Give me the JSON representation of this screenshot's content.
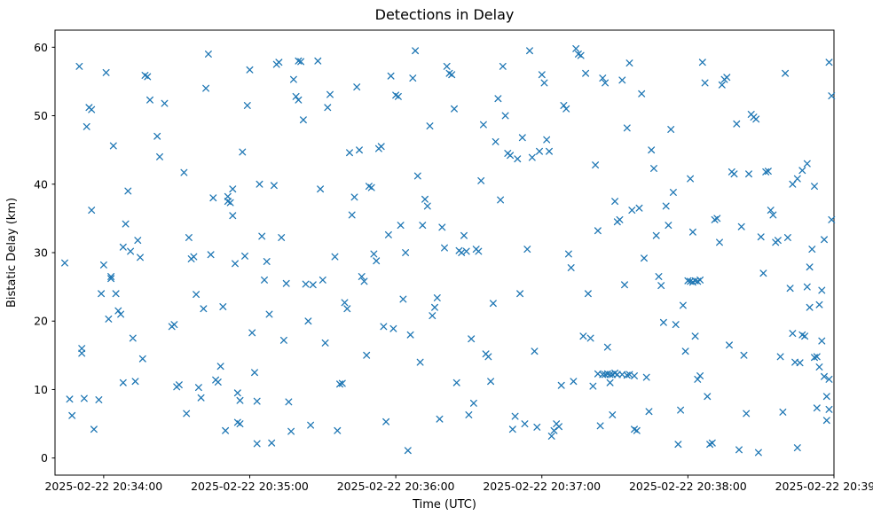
{
  "chart_data": {
    "type": "scatter",
    "title": "Detections in Delay",
    "xlabel": "Time (UTC)",
    "ylabel": "Bistatic Delay (km)",
    "marker": "x",
    "marker_color": "#1f77b4",
    "grid": false,
    "xlim_seconds_rel_20_34": [
      -20,
      300
    ],
    "ylim": [
      -2.5,
      62.5
    ],
    "x_ticks": [
      {
        "value": 0,
        "label": "2025-02-22 20:34:00"
      },
      {
        "value": 60,
        "label": "2025-02-22 20:35:00"
      },
      {
        "value": 120,
        "label": "2025-02-22 20:36:00"
      },
      {
        "value": 180,
        "label": "2025-02-22 20:37:00"
      },
      {
        "value": 240,
        "label": "2025-02-22 20:38:00"
      },
      {
        "value": 300,
        "label": "2025-02-22 20:39:00"
      }
    ],
    "y_ticks": [
      0,
      10,
      20,
      30,
      40,
      50,
      60
    ],
    "points": [
      [
        -16,
        28.5
      ],
      [
        -14,
        8.6
      ],
      [
        -13,
        6.2
      ],
      [
        -10,
        57.2
      ],
      [
        -8,
        8.7
      ],
      [
        -7,
        48.4
      ],
      [
        -6,
        51.2
      ],
      [
        -5,
        50.9
      ],
      [
        -5,
        36.2
      ],
      [
        -9,
        16.0
      ],
      [
        -9,
        15.3
      ],
      [
        -4,
        4.2
      ],
      [
        -2,
        8.5
      ],
      [
        -1,
        24.0
      ],
      [
        0,
        28.2
      ],
      [
        1,
        56.3
      ],
      [
        2,
        20.3
      ],
      [
        3,
        26.5
      ],
      [
        3,
        26.2
      ],
      [
        4,
        45.6
      ],
      [
        5,
        24.0
      ],
      [
        6,
        21.5
      ],
      [
        7,
        21.0
      ],
      [
        8,
        30.8
      ],
      [
        8,
        11.0
      ],
      [
        9,
        34.2
      ],
      [
        10,
        39.0
      ],
      [
        11,
        30.2
      ],
      [
        12,
        17.5
      ],
      [
        13,
        11.2
      ],
      [
        14,
        31.8
      ],
      [
        15,
        29.3
      ],
      [
        16,
        14.5
      ],
      [
        17,
        55.9
      ],
      [
        18,
        55.7
      ],
      [
        19,
        52.3
      ],
      [
        22,
        47.0
      ],
      [
        23,
        44.0
      ],
      [
        25,
        51.8
      ],
      [
        28,
        19.2
      ],
      [
        29,
        19.5
      ],
      [
        30,
        10.4
      ],
      [
        31,
        10.7
      ],
      [
        33,
        41.7
      ],
      [
        34,
        6.5
      ],
      [
        35,
        32.2
      ],
      [
        36,
        29.1
      ],
      [
        37,
        29.4
      ],
      [
        38,
        23.9
      ],
      [
        39,
        10.3
      ],
      [
        40,
        8.8
      ],
      [
        41,
        21.8
      ],
      [
        42,
        54.0
      ],
      [
        43,
        59.0
      ],
      [
        44,
        29.7
      ],
      [
        45,
        38.0
      ],
      [
        46,
        11.4
      ],
      [
        47,
        11.1
      ],
      [
        48,
        13.4
      ],
      [
        49,
        22.1
      ],
      [
        50,
        4.0
      ],
      [
        51,
        37.5
      ],
      [
        51,
        38.2
      ],
      [
        52,
        37.3
      ],
      [
        53,
        39.3
      ],
      [
        53,
        35.4
      ],
      [
        54,
        28.4
      ],
      [
        55,
        9.5
      ],
      [
        55,
        5.2
      ],
      [
        56,
        5.0
      ],
      [
        56,
        8.4
      ],
      [
        57,
        44.7
      ],
      [
        58,
        29.5
      ],
      [
        59,
        51.5
      ],
      [
        60,
        56.7
      ],
      [
        61,
        18.3
      ],
      [
        62,
        12.5
      ],
      [
        63,
        8.3
      ],
      [
        63,
        2.1
      ],
      [
        64,
        40.0
      ],
      [
        65,
        32.4
      ],
      [
        66,
        26.0
      ],
      [
        67,
        28.7
      ],
      [
        68,
        21.0
      ],
      [
        69,
        2.2
      ],
      [
        70,
        39.8
      ],
      [
        71,
        57.5
      ],
      [
        72,
        57.8
      ],
      [
        73,
        32.2
      ],
      [
        74,
        17.2
      ],
      [
        75,
        25.5
      ],
      [
        76,
        8.2
      ],
      [
        77,
        3.9
      ],
      [
        78,
        55.3
      ],
      [
        79,
        52.8
      ],
      [
        80,
        52.3
      ],
      [
        80,
        58.0
      ],
      [
        81,
        57.9
      ],
      [
        82,
        49.4
      ],
      [
        83,
        25.4
      ],
      [
        84,
        20.0
      ],
      [
        85,
        4.8
      ],
      [
        86,
        25.3
      ],
      [
        88,
        58.0
      ],
      [
        89,
        39.3
      ],
      [
        90,
        26.0
      ],
      [
        91,
        16.8
      ],
      [
        92,
        51.2
      ],
      [
        93,
        53.1
      ],
      [
        95,
        29.4
      ],
      [
        96,
        4.0
      ],
      [
        97,
        10.8
      ],
      [
        98,
        10.9
      ],
      [
        99,
        22.7
      ],
      [
        100,
        21.8
      ],
      [
        101,
        44.6
      ],
      [
        102,
        35.5
      ],
      [
        103,
        38.1
      ],
      [
        104,
        54.2
      ],
      [
        105,
        45.0
      ],
      [
        106,
        26.5
      ],
      [
        107,
        25.8
      ],
      [
        108,
        15.0
      ],
      [
        109,
        39.7
      ],
      [
        110,
        39.5
      ],
      [
        111,
        29.8
      ],
      [
        112,
        28.8
      ],
      [
        113,
        45.2
      ],
      [
        114,
        45.5
      ],
      [
        115,
        19.2
      ],
      [
        116,
        5.3
      ],
      [
        117,
        32.6
      ],
      [
        118,
        55.8
      ],
      [
        119,
        18.9
      ],
      [
        120,
        53.0
      ],
      [
        121,
        52.8
      ],
      [
        122,
        34.0
      ],
      [
        123,
        23.2
      ],
      [
        124,
        30.0
      ],
      [
        125,
        1.1
      ],
      [
        126,
        18.0
      ],
      [
        127,
        55.5
      ],
      [
        128,
        59.5
      ],
      [
        129,
        41.2
      ],
      [
        130,
        14.0
      ],
      [
        131,
        34.0
      ],
      [
        132,
        37.8
      ],
      [
        133,
        36.8
      ],
      [
        134,
        48.5
      ],
      [
        135,
        20.8
      ],
      [
        136,
        22.0
      ],
      [
        137,
        23.4
      ],
      [
        138,
        5.7
      ],
      [
        139,
        33.7
      ],
      [
        140,
        30.7
      ],
      [
        141,
        57.2
      ],
      [
        142,
        56.2
      ],
      [
        143,
        56.0
      ],
      [
        144,
        51.0
      ],
      [
        145,
        11.0
      ],
      [
        146,
        30.3
      ],
      [
        147,
        30.0
      ],
      [
        148,
        32.5
      ],
      [
        149,
        30.2
      ],
      [
        150,
        6.3
      ],
      [
        151,
        17.4
      ],
      [
        152,
        8.0
      ],
      [
        153,
        30.5
      ],
      [
        154,
        30.2
      ],
      [
        155,
        40.5
      ],
      [
        156,
        48.7
      ],
      [
        157,
        15.2
      ],
      [
        158,
        14.8
      ],
      [
        159,
        11.2
      ],
      [
        160,
        22.6
      ],
      [
        161,
        46.2
      ],
      [
        162,
        52.5
      ],
      [
        163,
        37.7
      ],
      [
        164,
        57.2
      ],
      [
        165,
        50.0
      ],
      [
        166,
        44.5
      ],
      [
        167,
        44.2
      ],
      [
        168,
        4.2
      ],
      [
        169,
        6.1
      ],
      [
        170,
        43.7
      ],
      [
        171,
        24.0
      ],
      [
        172,
        46.8
      ],
      [
        173,
        5.0
      ],
      [
        174,
        30.5
      ],
      [
        175,
        59.5
      ],
      [
        176,
        43.9
      ],
      [
        177,
        15.6
      ],
      [
        178,
        4.5
      ],
      [
        179,
        44.8
      ],
      [
        180,
        56.0
      ],
      [
        181,
        54.8
      ],
      [
        182,
        46.5
      ],
      [
        183,
        44.8
      ],
      [
        184,
        3.2
      ],
      [
        185,
        4.0
      ],
      [
        186,
        5.0
      ],
      [
        187,
        4.6
      ],
      [
        188,
        10.6
      ],
      [
        189,
        51.5
      ],
      [
        190,
        51.0
      ],
      [
        191,
        29.8
      ],
      [
        192,
        27.8
      ],
      [
        193,
        11.2
      ],
      [
        194,
        59.8
      ],
      [
        195,
        59.0
      ],
      [
        196,
        58.8
      ],
      [
        197,
        17.8
      ],
      [
        198,
        56.2
      ],
      [
        199,
        24.0
      ],
      [
        200,
        17.5
      ],
      [
        201,
        10.5
      ],
      [
        202,
        42.8
      ],
      [
        203,
        33.2
      ],
      [
        204,
        4.7
      ],
      [
        205,
        55.5
      ],
      [
        206,
        54.8
      ],
      [
        207,
        16.2
      ],
      [
        208,
        11.0
      ],
      [
        209,
        6.3
      ],
      [
        210,
        37.5
      ],
      [
        211,
        34.5
      ],
      [
        212,
        34.8
      ],
      [
        213,
        55.2
      ],
      [
        214,
        25.3
      ],
      [
        215,
        48.2
      ],
      [
        216,
        57.7
      ],
      [
        217,
        36.2
      ],
      [
        218,
        4.2
      ],
      [
        219,
        4.0
      ],
      [
        220,
        36.5
      ],
      [
        221,
        53.2
      ],
      [
        222,
        29.2
      ],
      [
        223,
        11.8
      ],
      [
        224,
        6.8
      ],
      [
        225,
        45.0
      ],
      [
        226,
        42.3
      ],
      [
        227,
        32.5
      ],
      [
        228,
        26.5
      ],
      [
        229,
        25.2
      ],
      [
        230,
        19.8
      ],
      [
        231,
        36.8
      ],
      [
        232,
        34.0
      ],
      [
        233,
        48.0
      ],
      [
        234,
        38.8
      ],
      [
        235,
        19.5
      ],
      [
        236,
        2.0
      ],
      [
        237,
        7.0
      ],
      [
        238,
        22.3
      ],
      [
        239,
        15.6
      ],
      [
        203,
        12.3
      ],
      [
        205,
        12.2
      ],
      [
        206,
        12.2
      ],
      [
        207,
        12.3
      ],
      [
        208,
        12.2
      ],
      [
        209,
        12.2
      ],
      [
        210,
        12.4
      ],
      [
        211,
        12.2
      ],
      [
        213,
        12.2
      ],
      [
        215,
        12.1
      ],
      [
        216,
        12.2
      ],
      [
        218,
        12.0
      ],
      [
        240,
        25.9
      ],
      [
        241,
        25.8
      ],
      [
        241,
        40.8
      ],
      [
        242,
        25.7
      ],
      [
        242,
        33.0
      ],
      [
        243,
        25.9
      ],
      [
        243,
        17.8
      ],
      [
        244,
        25.8
      ],
      [
        244,
        11.5
      ],
      [
        245,
        26.0
      ],
      [
        245,
        12.0
      ],
      [
        246,
        57.8
      ],
      [
        247,
        54.8
      ],
      [
        248,
        9.0
      ],
      [
        249,
        2.0
      ],
      [
        250,
        2.2
      ],
      [
        251,
        34.8
      ],
      [
        252,
        35.0
      ],
      [
        253,
        31.5
      ],
      [
        254,
        54.5
      ],
      [
        255,
        55.3
      ],
      [
        256,
        55.6
      ],
      [
        257,
        16.5
      ],
      [
        258,
        41.8
      ],
      [
        259,
        41.5
      ],
      [
        260,
        48.8
      ],
      [
        261,
        1.2
      ],
      [
        262,
        33.8
      ],
      [
        263,
        15.0
      ],
      [
        264,
        6.5
      ],
      [
        265,
        41.5
      ],
      [
        266,
        50.2
      ],
      [
        267,
        49.8
      ],
      [
        268,
        49.5
      ],
      [
        269,
        0.8
      ],
      [
        270,
        32.3
      ],
      [
        271,
        27.0
      ],
      [
        272,
        41.8
      ],
      [
        273,
        41.9
      ],
      [
        274,
        36.2
      ],
      [
        275,
        35.5
      ],
      [
        276,
        31.5
      ],
      [
        277,
        31.8
      ],
      [
        278,
        14.8
      ],
      [
        279,
        6.7
      ],
      [
        280,
        56.2
      ],
      [
        281,
        32.2
      ],
      [
        282,
        24.8
      ],
      [
        283,
        18.2
      ],
      [
        284,
        14.0
      ],
      [
        285,
        1.5
      ],
      [
        286,
        13.9
      ],
      [
        287,
        18.0
      ],
      [
        288,
        17.8
      ],
      [
        289,
        25.0
      ],
      [
        290,
        22.0
      ],
      [
        291,
        30.5
      ],
      [
        292,
        39.7
      ],
      [
        293,
        7.3
      ],
      [
        294,
        13.3
      ],
      [
        295,
        17.1
      ],
      [
        296,
        31.9
      ],
      [
        297,
        5.5
      ],
      [
        298,
        57.8
      ],
      [
        299,
        52.9
      ],
      [
        283,
        40.0
      ],
      [
        285,
        40.8
      ],
      [
        287,
        42.0
      ],
      [
        289,
        43.0
      ],
      [
        290,
        27.9
      ],
      [
        292,
        14.7
      ],
      [
        293,
        14.8
      ],
      [
        294,
        22.4
      ],
      [
        295,
        24.5
      ],
      [
        296,
        11.9
      ],
      [
        297,
        9.0
      ],
      [
        298,
        11.5
      ],
      [
        299,
        34.8
      ],
      [
        298,
        7.1
      ]
    ]
  }
}
